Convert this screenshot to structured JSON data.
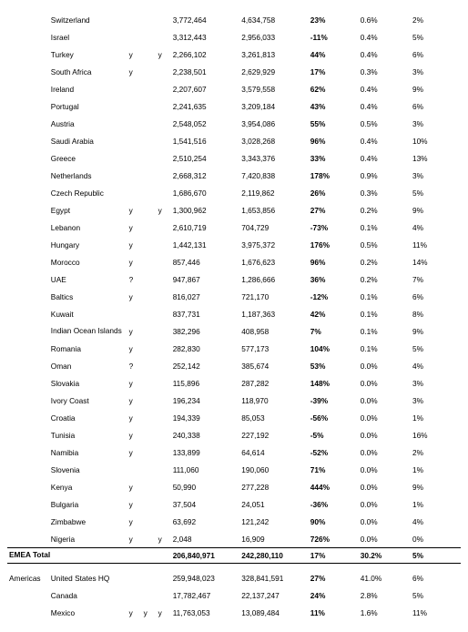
{
  "rows": [
    {
      "region": "",
      "country": "Switzerland",
      "f1": "",
      "f2": "",
      "f3": "",
      "v1": "3,772,464",
      "v2": "4,634,758",
      "p1": "23%",
      "p2": "0.6%",
      "p3": "2%"
    },
    {
      "region": "",
      "country": "Israel",
      "f1": "",
      "f2": "",
      "f3": "",
      "v1": "3,312,443",
      "v2": "2,956,033",
      "p1": "-11%",
      "p2": "0.4%",
      "p3": "5%"
    },
    {
      "region": "",
      "country": "Turkey",
      "f1": "y",
      "f2": "",
      "f3": "y",
      "v1": "2,266,102",
      "v2": "3,261,813",
      "p1": "44%",
      "p2": "0.4%",
      "p3": "6%"
    },
    {
      "region": "",
      "country": "South Africa",
      "f1": "y",
      "f2": "",
      "f3": "",
      "v1": "2,238,501",
      "v2": "2,629,929",
      "p1": "17%",
      "p2": "0.3%",
      "p3": "3%"
    },
    {
      "region": "",
      "country": "Ireland",
      "f1": "",
      "f2": "",
      "f3": "",
      "v1": "2,207,607",
      "v2": "3,579,558",
      "p1": "62%",
      "p2": "0.4%",
      "p3": "9%"
    },
    {
      "region": "",
      "country": "Portugal",
      "f1": "",
      "f2": "",
      "f3": "",
      "v1": "2,241,635",
      "v2": "3,209,184",
      "p1": "43%",
      "p2": "0.4%",
      "p3": "6%"
    },
    {
      "region": "",
      "country": "Austria",
      "f1": "",
      "f2": "",
      "f3": "",
      "v1": "2,548,052",
      "v2": "3,954,086",
      "p1": "55%",
      "p2": "0.5%",
      "p3": "3%"
    },
    {
      "region": "",
      "country": "Saudi Arabia",
      "f1": "",
      "f2": "",
      "f3": "",
      "v1": "1,541,516",
      "v2": "3,028,268",
      "p1": "96%",
      "p2": "0.4%",
      "p3": "10%"
    },
    {
      "region": "",
      "country": "Greece",
      "f1": "",
      "f2": "",
      "f3": "",
      "v1": "2,510,254",
      "v2": "3,343,376",
      "p1": "33%",
      "p2": "0.4%",
      "p3": "13%"
    },
    {
      "region": "",
      "country": "Netherlands",
      "f1": "",
      "f2": "",
      "f3": "",
      "v1": "2,668,312",
      "v2": "7,420,838",
      "p1": "178%",
      "p2": "0.9%",
      "p3": "3%"
    },
    {
      "region": "",
      "country": "Czech Republic",
      "f1": "",
      "f2": "",
      "f3": "",
      "v1": "1,686,670",
      "v2": "2,119,862",
      "p1": "26%",
      "p2": "0.3%",
      "p3": "5%"
    },
    {
      "region": "",
      "country": "Egypt",
      "f1": "y",
      "f2": "",
      "f3": "y",
      "v1": "1,300,962",
      "v2": "1,653,856",
      "p1": "27%",
      "p2": "0.2%",
      "p3": "9%"
    },
    {
      "region": "",
      "country": "Lebanon",
      "f1": "y",
      "f2": "",
      "f3": "",
      "v1": "2,610,719",
      "v2": "704,729",
      "p1": "-73%",
      "p2": "0.1%",
      "p3": "4%"
    },
    {
      "region": "",
      "country": "Hungary",
      "f1": "y",
      "f2": "",
      "f3": "",
      "v1": "1,442,131",
      "v2": "3,975,372",
      "p1": "176%",
      "p2": "0.5%",
      "p3": "11%"
    },
    {
      "region": "",
      "country": "Morocco",
      "f1": "y",
      "f2": "",
      "f3": "",
      "v1": "857,446",
      "v2": "1,676,623",
      "p1": "96%",
      "p2": "0.2%",
      "p3": "14%"
    },
    {
      "region": "",
      "country": "UAE",
      "f1": "?",
      "f2": "",
      "f3": "",
      "v1": "947,867",
      "v2": "1,286,666",
      "p1": "36%",
      "p2": "0.2%",
      "p3": "7%"
    },
    {
      "region": "",
      "country": "Baltics",
      "f1": "y",
      "f2": "",
      "f3": "",
      "v1": "816,027",
      "v2": "721,170",
      "p1": "-12%",
      "p2": "0.1%",
      "p3": "6%"
    },
    {
      "region": "",
      "country": "Kuwait",
      "f1": "",
      "f2": "",
      "f3": "",
      "v1": "837,731",
      "v2": "1,187,363",
      "p1": "42%",
      "p2": "0.1%",
      "p3": "8%"
    },
    {
      "region": "",
      "country": "Indian Ocean Islands",
      "f1": "y",
      "f2": "",
      "f3": "",
      "v1": "382,296",
      "v2": "408,958",
      "p1": "7%",
      "p2": "0.1%",
      "p3": "9%",
      "wrap": true
    },
    {
      "region": "",
      "country": "Romania",
      "f1": "y",
      "f2": "",
      "f3": "",
      "v1": "282,830",
      "v2": "577,173",
      "p1": "104%",
      "p2": "0.1%",
      "p3": "5%"
    },
    {
      "region": "",
      "country": "Oman",
      "f1": "?",
      "f2": "",
      "f3": "",
      "v1": "252,142",
      "v2": "385,674",
      "p1": "53%",
      "p2": "0.0%",
      "p3": "4%"
    },
    {
      "region": "",
      "country": "Slovakia",
      "f1": "y",
      "f2": "",
      "f3": "",
      "v1": "115,896",
      "v2": "287,282",
      "p1": "148%",
      "p2": "0.0%",
      "p3": "3%"
    },
    {
      "region": "",
      "country": "Ivory Coast",
      "f1": "y",
      "f2": "",
      "f3": "",
      "v1": "196,234",
      "v2": "118,970",
      "p1": "-39%",
      "p2": "0.0%",
      "p3": "3%"
    },
    {
      "region": "",
      "country": "Croatia",
      "f1": "y",
      "f2": "",
      "f3": "",
      "v1": "194,339",
      "v2": "85,053",
      "p1": "-56%",
      "p2": "0.0%",
      "p3": "1%"
    },
    {
      "region": "",
      "country": "Tunisia",
      "f1": "y",
      "f2": "",
      "f3": "",
      "v1": "240,338",
      "v2": "227,192",
      "p1": "-5%",
      "p2": "0.0%",
      "p3": "16%"
    },
    {
      "region": "",
      "country": "Namibia",
      "f1": "y",
      "f2": "",
      "f3": "",
      "v1": "133,899",
      "v2": "64,614",
      "p1": "-52%",
      "p2": "0.0%",
      "p3": "2%"
    },
    {
      "region": "",
      "country": "Slovenia",
      "f1": "",
      "f2": "",
      "f3": "",
      "v1": "111,060",
      "v2": "190,060",
      "p1": "71%",
      "p2": "0.0%",
      "p3": "1%"
    },
    {
      "region": "",
      "country": "Kenya",
      "f1": "y",
      "f2": "",
      "f3": "",
      "v1": "50,990",
      "v2": "277,228",
      "p1": "444%",
      "p2": "0.0%",
      "p3": "9%"
    },
    {
      "region": "",
      "country": "Bulgaria",
      "f1": "y",
      "f2": "",
      "f3": "",
      "v1": "37,504",
      "v2": "24,051",
      "p1": "-36%",
      "p2": "0.0%",
      "p3": "1%"
    },
    {
      "region": "",
      "country": "Zimbabwe",
      "f1": "y",
      "f2": "",
      "f3": "",
      "v1": "63,692",
      "v2": "121,242",
      "p1": "90%",
      "p2": "0.0%",
      "p3": "4%"
    },
    {
      "region": "",
      "country": "Nigeria",
      "f1": "y",
      "f2": "",
      "f3": "y",
      "v1": "2,048",
      "v2": "16,909",
      "p1": "726%",
      "p2": "0.0%",
      "p3": "0%"
    }
  ],
  "total": {
    "region": "EMEA Total",
    "v1": "206,840,971",
    "v2": "242,280,110",
    "p1": "17%",
    "p2": "30.2%",
    "p3": "5%"
  },
  "americas": [
    {
      "region": "Americas",
      "country": "United States HQ",
      "f1": "",
      "f2": "",
      "f3": "",
      "v1": "259,948,023",
      "v2": "328,841,591",
      "p1": "27%",
      "p2": "41.0%",
      "p3": "6%"
    },
    {
      "region": "",
      "country": "Canada",
      "f1": "",
      "f2": "",
      "f3": "",
      "v1": "17,782,467",
      "v2": "22,137,247",
      "p1": "24%",
      "p2": "2.8%",
      "p3": "5%"
    },
    {
      "region": "",
      "country": "Mexico",
      "f1": "y",
      "f2": "y",
      "f3": "y",
      "v1": "11,763,053",
      "v2": "13,089,484",
      "p1": "11%",
      "p2": "1.6%",
      "p3": "11%"
    }
  ]
}
